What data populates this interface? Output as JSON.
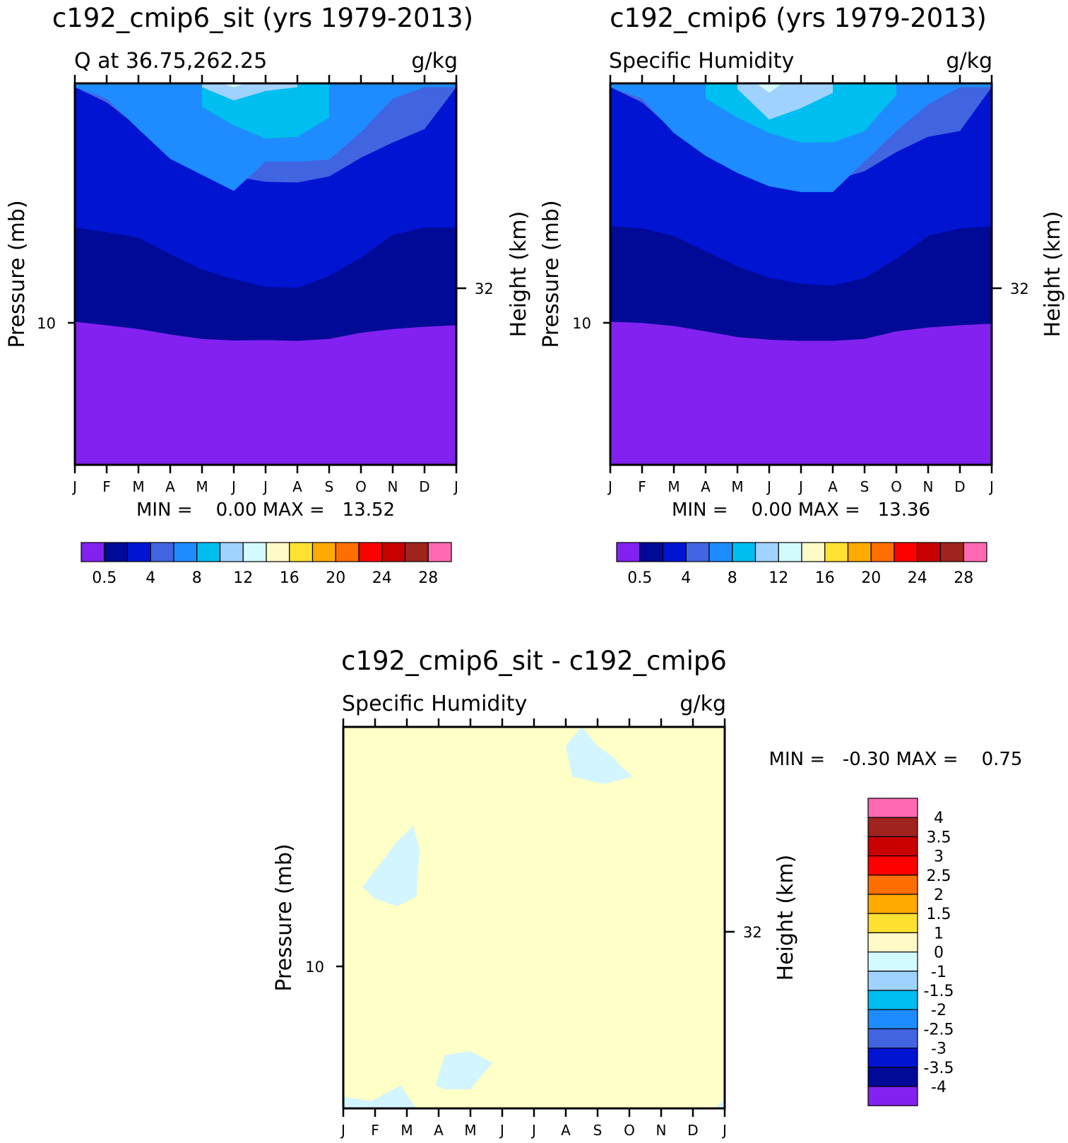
{
  "months": [
    "J",
    "F",
    "M",
    "A",
    "M",
    "J",
    "J",
    "A",
    "S",
    "O",
    "N",
    "D",
    "J"
  ],
  "fill_palette": [
    "#8221f0",
    "#000a96",
    "#0014d2",
    "#4164e1",
    "#1e8cff",
    "#00bef0",
    "#a0d2ff",
    "#d2faff",
    "#fffac8",
    "#ffe132",
    "#ffaa00",
    "#ff6e00",
    "#ff0000",
    "#c80000",
    "#a0231e",
    "#ff69b4"
  ],
  "chart_data": [
    {
      "id": "panel-sit",
      "type": "contour",
      "title": "c192_cmip6_sit (yrs 1979-2013)",
      "subtitle_left": "Q at 36.75,262.25",
      "subtitle_right": "g/kg",
      "ylabel": "Pressure (mb)",
      "ylabel_right": "Height (km)",
      "ytick_left": "10",
      "ytick_right": "32",
      "stats": "MIN =    0.00 MAX =   13.52",
      "colorbar_labels": [
        "0.5",
        "4",
        "8",
        "12",
        "16",
        "20",
        "24",
        "28"
      ],
      "bands": [
        {
          "level": "0 - 0.5",
          "boundary": [
            37.5,
            36.6,
            35.6,
            34.2,
            33.0,
            32.6,
            32.7,
            32.5,
            33.0,
            34.6,
            35.6,
            36.2,
            36.6
          ]
        },
        {
          "level": "0.5 - 4",
          "boundary": [
            62.2,
            61.0,
            59.6,
            55.2,
            51.2,
            48.6,
            46.7,
            46.4,
            49.5,
            54.3,
            60.3,
            62.2,
            62.2
          ]
        },
        {
          "level": "4 - 6",
          "boundary": [
            99.0,
            95.0,
            88.5,
            83.0,
            77.8,
            75.6,
            74.2,
            74.0,
            75.6,
            80.5,
            84.5,
            88.0,
            99.0
          ]
        },
        {
          "level": "6 - 8",
          "boundary": [
            99.0,
            96.0,
            88.0,
            80.2,
            76.0,
            71.8,
            79.5,
            79.5,
            80.0,
            87.2,
            96.0,
            99.0,
            99.0
          ]
        },
        {
          "level": "8 - 10",
          "boundary": [
            null,
            null,
            null,
            null,
            93.8,
            89.0,
            85.5,
            86.0,
            91.0,
            null,
            null,
            null,
            null
          ]
        },
        {
          "level": "10 - 12",
          "boundary": [
            null,
            null,
            null,
            null,
            99.0,
            95.5,
            98.0,
            99.0,
            null,
            null,
            null,
            null,
            null
          ]
        },
        {
          "level": "12 - 14",
          "boundary": [
            null,
            null,
            null,
            null,
            null,
            99.0,
            null,
            null,
            null,
            null,
            null,
            null,
            null
          ]
        }
      ]
    },
    {
      "id": "panel-ctl",
      "type": "contour",
      "title": "c192_cmip6 (yrs 1979-2013)",
      "subtitle_left": "Specific Humidity",
      "subtitle_right": "g/kg",
      "ylabel": "Pressure (mb)",
      "ylabel_right": "Height (km)",
      "ytick_left": "10",
      "ytick_right": "32",
      "stats": "MIN =    0.00 MAX =   13.36",
      "colorbar_labels": [
        "0.5",
        "4",
        "8",
        "12",
        "16",
        "20",
        "24",
        "28"
      ],
      "bands": [
        {
          "level": "0 - 0.5",
          "boundary": [
            37.5,
            37.2,
            36.4,
            35.0,
            33.5,
            32.8,
            32.5,
            32.5,
            33.0,
            35.0,
            36.0,
            36.6,
            37.0
          ]
        },
        {
          "level": "0.5 - 4",
          "boundary": [
            62.5,
            62.0,
            60.0,
            56.0,
            52.0,
            49.0,
            47.5,
            47.0,
            49.0,
            54.0,
            60.0,
            62.0,
            62.5
          ]
        },
        {
          "level": "4 - 6",
          "boundary": [
            99.0,
            95.0,
            87.5,
            83.0,
            78.0,
            76.0,
            75.0,
            74.5,
            77.0,
            82.0,
            86.0,
            87.5,
            99.0
          ]
        },
        {
          "level": "6 - 8",
          "boundary": [
            99.0,
            96.0,
            87.0,
            81.0,
            76.5,
            73.0,
            71.5,
            71.5,
            79.5,
            87.5,
            94.5,
            99.0,
            99.0
          ]
        },
        {
          "level": "8 - 10",
          "boundary": [
            null,
            null,
            null,
            96.0,
            91.0,
            87.0,
            84.5,
            84.5,
            87.5,
            97.0,
            null,
            null,
            null
          ]
        },
        {
          "level": "10 - 12",
          "boundary": [
            null,
            null,
            null,
            null,
            98.5,
            90.5,
            93.5,
            97.5,
            null,
            null,
            null,
            null,
            null
          ]
        },
        {
          "level": "12 - 14",
          "boundary": [
            null,
            null,
            null,
            null,
            null,
            97.5,
            null,
            null,
            null,
            null,
            null,
            null,
            null
          ]
        }
      ]
    },
    {
      "id": "panel-diff",
      "type": "contour",
      "title": "c192_cmip6_sit - c192_cmip6",
      "subtitle_left": "Specific Humidity",
      "subtitle_right": "g/kg",
      "ylabel": "Pressure (mb)",
      "ylabel_right": "Height (km)",
      "ytick_left": "10",
      "ytick_right": "32",
      "stats": "MIN =   -0.30 MAX =    0.75",
      "background_level": "0 - 1",
      "colorbar_labels": [
        "4",
        "3.5",
        "3",
        "2.5",
        "2",
        "1.5",
        "1",
        "0",
        "-1",
        "-1.5",
        "-2",
        "-2.5",
        "-3",
        "-3.5",
        "-4"
      ],
      "negative_regions": [
        {
          "level": "-1 - 0",
          "polygon": [
            [
              7.5,
              100
            ],
            [
              8.0,
              95
            ],
            [
              8.5,
              92
            ],
            [
              8.7,
              90
            ],
            [
              9.1,
              87
            ],
            [
              8.2,
              85
            ],
            [
              7.2,
              87
            ],
            [
              7.0,
              95
            ]
          ]
        },
        {
          "level": "-1 - 0",
          "polygon": [
            [
              1.0,
              55
            ],
            [
              1.7,
              53
            ],
            [
              2.3,
              55.5
            ],
            [
              2.4,
              68
            ],
            [
              2.2,
              74
            ],
            [
              1.7,
              70
            ],
            [
              0.6,
              58
            ]
          ]
        },
        {
          "level": "-1 - 0",
          "polygon": [
            [
              2.9,
              6
            ],
            [
              3.2,
              14
            ],
            [
              4.0,
              15
            ],
            [
              4.7,
              12
            ],
            [
              4.0,
              5
            ],
            [
              3.2,
              5
            ]
          ]
        },
        {
          "level": "-1 - 0",
          "polygon": [
            [
              0,
              0
            ],
            [
              0,
              3
            ],
            [
              0.9,
              2
            ],
            [
              1.8,
              6
            ],
            [
              2.3,
              0
            ]
          ]
        },
        {
          "level": "-1 - 0",
          "polygon": [
            [
              11.7,
              0
            ],
            [
              12,
              2.5
            ],
            [
              12,
              0
            ]
          ]
        }
      ]
    }
  ]
}
